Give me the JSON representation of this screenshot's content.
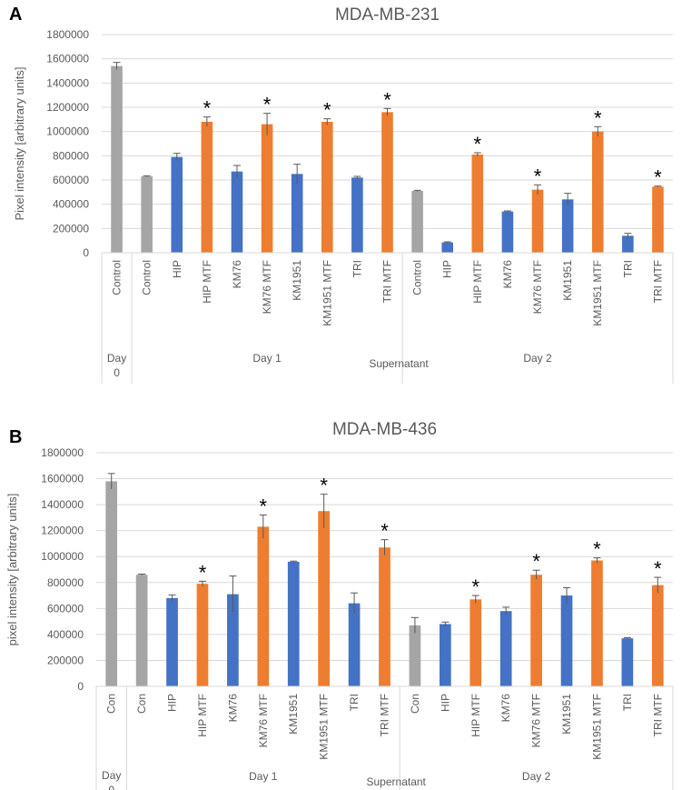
{
  "chart_data": [
    {
      "type": "bar",
      "panel": "A",
      "title": "MDA-MB-231",
      "ylabel": "Pixel intensity [arbitrary units]",
      "xlabel": "Supernatant",
      "ylim": [
        0,
        1800000
      ],
      "yticks": [
        "0",
        "200000",
        "400000",
        "600000",
        "800000",
        "1000000",
        "1200000",
        "1400000",
        "1600000",
        "1800000"
      ],
      "categories": [
        "Control",
        "Control",
        "HIP",
        "HIP MTF",
        "KM76",
        "KM76 MTF",
        "KM1951",
        "KM1951 MTF",
        "TRI",
        "TRI MTF",
        "Control",
        "HIP",
        "HIP MTF",
        "KM76",
        "KM76 MTF",
        "KM1951",
        "KM1951 MTF",
        "TRI",
        "TRI MTF"
      ],
      "values": [
        1540000,
        630000,
        790000,
        1080000,
        670000,
        1060000,
        650000,
        1080000,
        620000,
        1160000,
        510000,
        85000,
        810000,
        340000,
        520000,
        440000,
        1000000,
        140000,
        545000
      ],
      "errors": [
        30000,
        5000,
        30000,
        40000,
        50000,
        90000,
        80000,
        25000,
        10000,
        30000,
        5000,
        5000,
        15000,
        5000,
        40000,
        50000,
        40000,
        20000,
        5000
      ],
      "colors": [
        "#a5a5a5",
        "#a5a5a5",
        "#4472c4",
        "#ed7d31",
        "#4472c4",
        "#ed7d31",
        "#4472c4",
        "#ed7d31",
        "#4472c4",
        "#ed7d31",
        "#a5a5a5",
        "#4472c4",
        "#ed7d31",
        "#4472c4",
        "#ed7d31",
        "#4472c4",
        "#ed7d31",
        "#4472c4",
        "#ed7d31"
      ],
      "significant": [
        false,
        false,
        false,
        true,
        false,
        true,
        false,
        true,
        false,
        true,
        false,
        false,
        true,
        false,
        true,
        false,
        true,
        false,
        true
      ],
      "marker": "*",
      "groups": [
        {
          "label": "Day 0",
          "start": 0,
          "end": 0
        },
        {
          "label": "Day 1",
          "start": 1,
          "end": 9
        },
        {
          "label": "Day 2",
          "start": 10,
          "end": 18
        }
      ]
    },
    {
      "type": "bar",
      "panel": "B",
      "title": "MDA-MB-436",
      "ylabel": "pixel intensity [arbitrary units]",
      "xlabel": "Supernatant",
      "ylim": [
        0,
        1800000
      ],
      "yticks": [
        "0",
        "200000",
        "400000",
        "600000",
        "800000",
        "1000000",
        "1200000",
        "1400000",
        "1600000",
        "1800000"
      ],
      "categories": [
        "Con",
        "Con",
        "HIP",
        "HIP MTF",
        "KM76",
        "KM76 MTF",
        "KM1951",
        "KM1951 MTF",
        "TRI",
        "TRI MTF",
        "Con",
        "HIP",
        "HIP MTF",
        "KM76",
        "KM76 MTF",
        "KM1951",
        "KM1951 MTF",
        "TRI",
        "TRI MTF"
      ],
      "values": [
        1580000,
        860000,
        680000,
        790000,
        710000,
        1230000,
        960000,
        1350000,
        640000,
        1070000,
        470000,
        480000,
        670000,
        580000,
        860000,
        700000,
        970000,
        370000,
        780000
      ],
      "errors": [
        60000,
        5000,
        25000,
        20000,
        140000,
        90000,
        5000,
        130000,
        80000,
        60000,
        60000,
        15000,
        30000,
        30000,
        35000,
        60000,
        20000,
        5000,
        60000
      ],
      "colors": [
        "#a5a5a5",
        "#a5a5a5",
        "#4472c4",
        "#ed7d31",
        "#4472c4",
        "#ed7d31",
        "#4472c4",
        "#ed7d31",
        "#4472c4",
        "#ed7d31",
        "#a5a5a5",
        "#4472c4",
        "#ed7d31",
        "#4472c4",
        "#ed7d31",
        "#4472c4",
        "#ed7d31",
        "#4472c4",
        "#ed7d31"
      ],
      "significant": [
        false,
        false,
        false,
        true,
        false,
        true,
        false,
        true,
        false,
        true,
        false,
        false,
        true,
        false,
        true,
        false,
        true,
        false,
        true
      ],
      "marker": "*",
      "groups": [
        {
          "label": "Day 0",
          "start": 0,
          "end": 0
        },
        {
          "label": "Day 1",
          "start": 1,
          "end": 9
        },
        {
          "label": "Day 2",
          "start": 10,
          "end": 18
        }
      ]
    }
  ]
}
